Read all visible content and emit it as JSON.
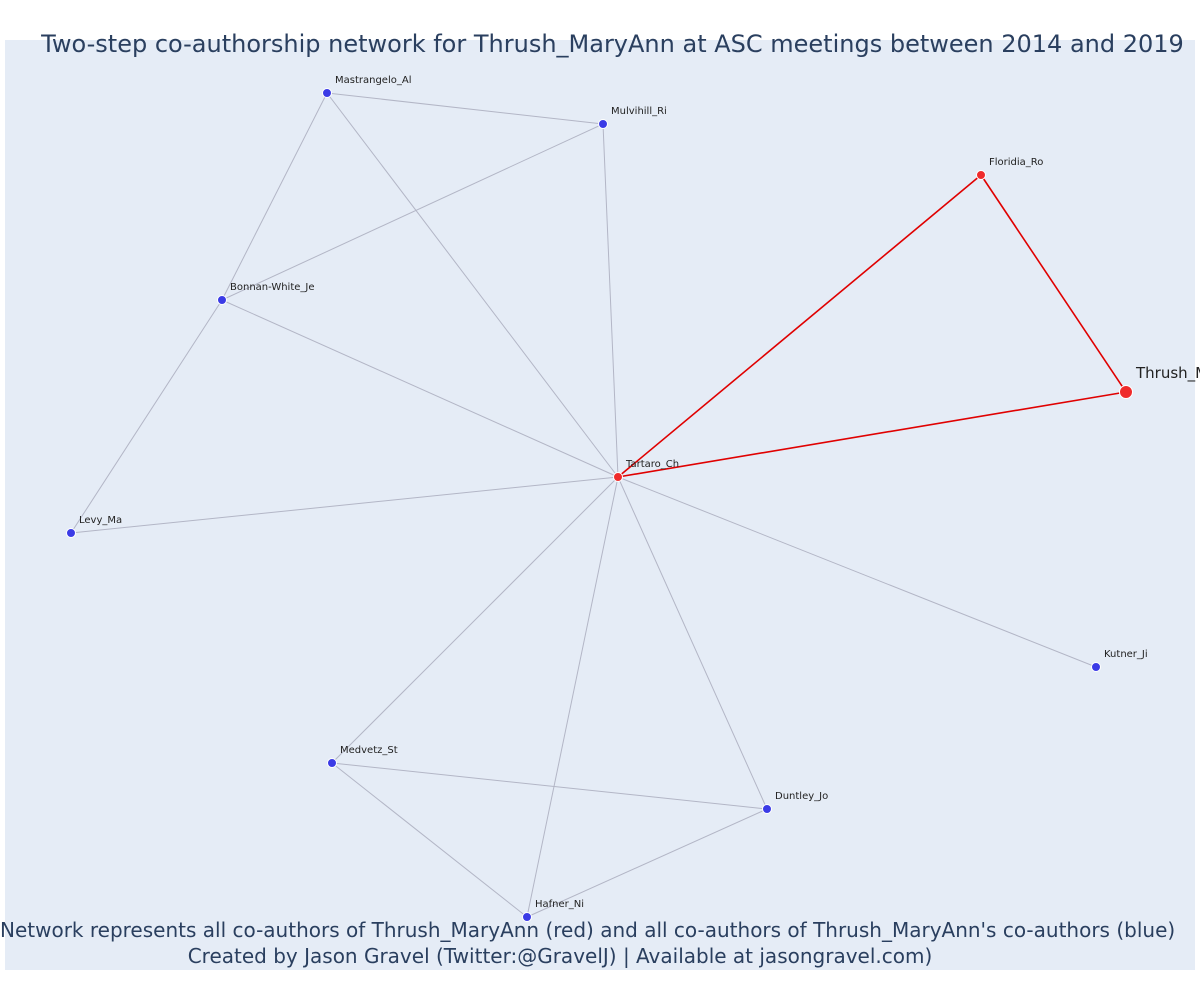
{
  "title": "Two-step co-authorship network for Thrush_MaryAnn at ASC meetings between 2014 and 2019",
  "footnote_line1": "Network represents all co-authors of Thrush_MaryAnn (red) and all co-authors of Thrush_MaryAnn's co-authors (blue)",
  "footnote_line2": "Created by Jason Gravel (Twitter:@GravelJ) | Available at jasongravel.com)",
  "colors": {
    "plot_background": "#e5ecf6",
    "coauthor_node": "#ef2b2b",
    "two_step_node": "#3b3be6",
    "coauthor_edge": "#e00000",
    "two_step_edge": "#b3b6c6",
    "text": "#2a3f5f"
  },
  "nodes": [
    {
      "id": "Thrush_MaryAnn",
      "label": "Thrush_MaryAnn",
      "group": "focal"
    },
    {
      "id": "Tartaro_Ch",
      "label": "Tartaro_Ch",
      "group": "coauthor"
    },
    {
      "id": "Floridia_Ro",
      "label": "Floridia_Ro",
      "group": "coauthor"
    },
    {
      "id": "Mastrangelo_Al",
      "label": "Mastrangelo_Al",
      "group": "two_step"
    },
    {
      "id": "Mulvihill_Ri",
      "label": "Mulvihill_Ri",
      "group": "two_step"
    },
    {
      "id": "Bonnan-White_Je",
      "label": "Bonnan-White_Je",
      "group": "two_step"
    },
    {
      "id": "Levy_Ma",
      "label": "Levy_Ma",
      "group": "two_step"
    },
    {
      "id": "Kutner_Ji",
      "label": "Kutner_Ji",
      "group": "two_step"
    },
    {
      "id": "Medvetz_St",
      "label": "Medvetz_St",
      "group": "two_step"
    },
    {
      "id": "Duntley_Jo",
      "label": "Duntley_Jo",
      "group": "two_step"
    },
    {
      "id": "Hafner_Ni",
      "label": "Hafner_Ni",
      "group": "two_step"
    }
  ],
  "edges": [
    {
      "source": "Thrush_MaryAnn",
      "target": "Tartaro_Ch",
      "type": "coauthor"
    },
    {
      "source": "Thrush_MaryAnn",
      "target": "Floridia_Ro",
      "type": "coauthor"
    },
    {
      "source": "Tartaro_Ch",
      "target": "Floridia_Ro",
      "type": "coauthor"
    },
    {
      "source": "Tartaro_Ch",
      "target": "Mastrangelo_Al",
      "type": "two_step"
    },
    {
      "source": "Tartaro_Ch",
      "target": "Mulvihill_Ri",
      "type": "two_step"
    },
    {
      "source": "Tartaro_Ch",
      "target": "Bonnan-White_Je",
      "type": "two_step"
    },
    {
      "source": "Tartaro_Ch",
      "target": "Levy_Ma",
      "type": "two_step"
    },
    {
      "source": "Tartaro_Ch",
      "target": "Kutner_Ji",
      "type": "two_step"
    },
    {
      "source": "Tartaro_Ch",
      "target": "Medvetz_St",
      "type": "two_step"
    },
    {
      "source": "Tartaro_Ch",
      "target": "Duntley_Jo",
      "type": "two_step"
    },
    {
      "source": "Tartaro_Ch",
      "target": "Hafner_Ni",
      "type": "two_step"
    },
    {
      "source": "Mastrangelo_Al",
      "target": "Mulvihill_Ri",
      "type": "two_step"
    },
    {
      "source": "Mastrangelo_Al",
      "target": "Bonnan-White_Je",
      "type": "two_step"
    },
    {
      "source": "Mulvihill_Ri",
      "target": "Bonnan-White_Je",
      "type": "two_step"
    },
    {
      "source": "Bonnan-White_Je",
      "target": "Levy_Ma",
      "type": "two_step"
    },
    {
      "source": "Medvetz_St",
      "target": "Duntley_Jo",
      "type": "two_step"
    },
    {
      "source": "Medvetz_St",
      "target": "Hafner_Ni",
      "type": "two_step"
    },
    {
      "source": "Duntley_Jo",
      "target": "Hafner_Ni",
      "type": "two_step"
    }
  ]
}
